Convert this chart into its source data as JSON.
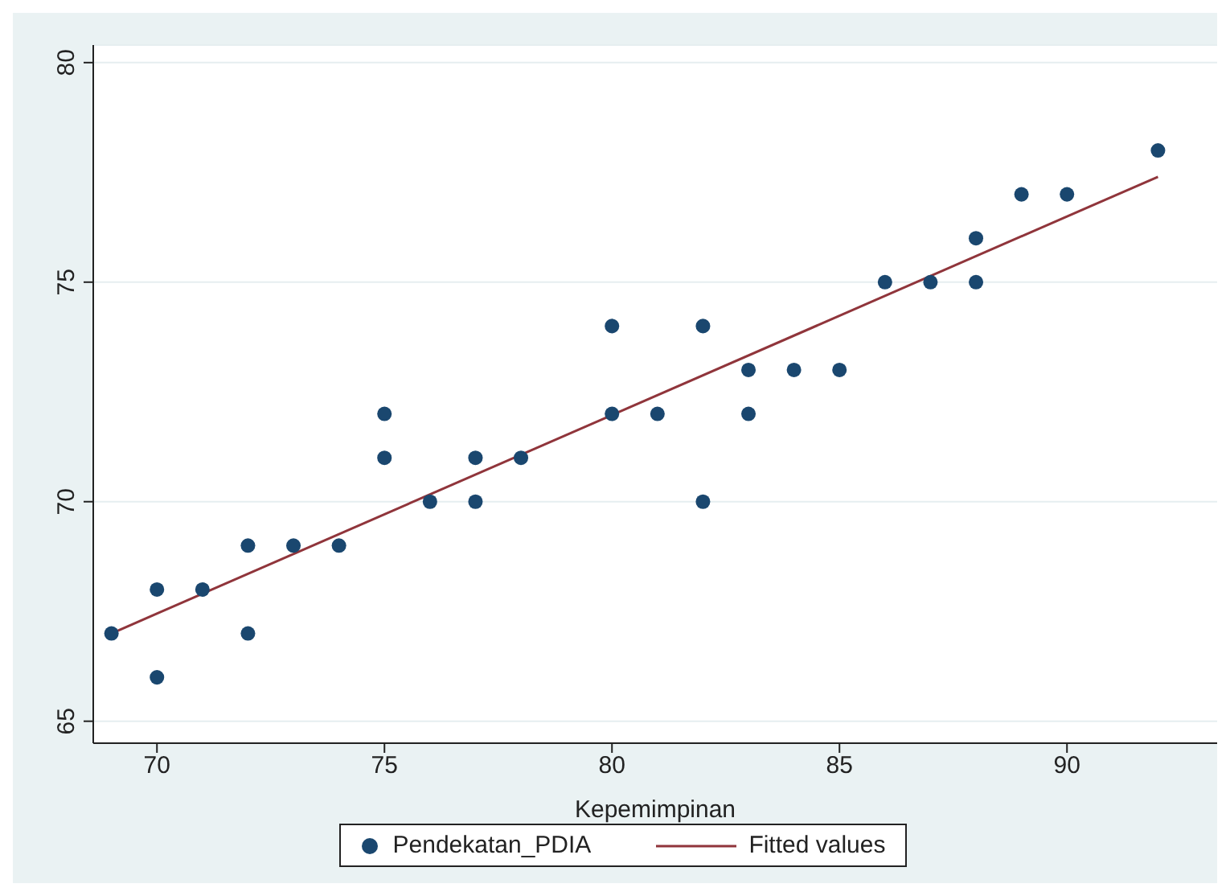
{
  "chart_data": {
    "type": "scatter",
    "xlabel": "Kepemimpinan",
    "xlim": [
      68.6,
      93.3
    ],
    "xticks": [
      70,
      75,
      80,
      85,
      90
    ],
    "ylim": [
      64.5,
      80.4
    ],
    "yticks": [
      65,
      70,
      75,
      80
    ],
    "grid": "y",
    "legend": "bottom",
    "series": [
      {
        "name": "Pendekatan_PDIA",
        "marker": "circle",
        "color": "#1a476f",
        "x": [
          69,
          70,
          70,
          71,
          72,
          72,
          73,
          74,
          75,
          75,
          76,
          77,
          77,
          78,
          80,
          80,
          81,
          82,
          82,
          83,
          83,
          84,
          85,
          86,
          87,
          88,
          88,
          89,
          90,
          92
        ],
        "values": [
          67,
          68,
          66,
          68,
          69,
          67,
          69,
          69,
          72,
          71,
          70,
          71,
          70,
          71,
          74,
          72,
          72,
          74,
          70,
          73,
          72,
          73,
          73,
          75,
          75,
          76,
          75,
          77,
          77,
          78
        ]
      },
      {
        "name": "Fitted values",
        "type": "line",
        "marker": "none",
        "color": "#90353b",
        "line_style": "solid",
        "x": [
          69,
          92
        ],
        "values": [
          67.0,
          77.4
        ]
      }
    ]
  }
}
